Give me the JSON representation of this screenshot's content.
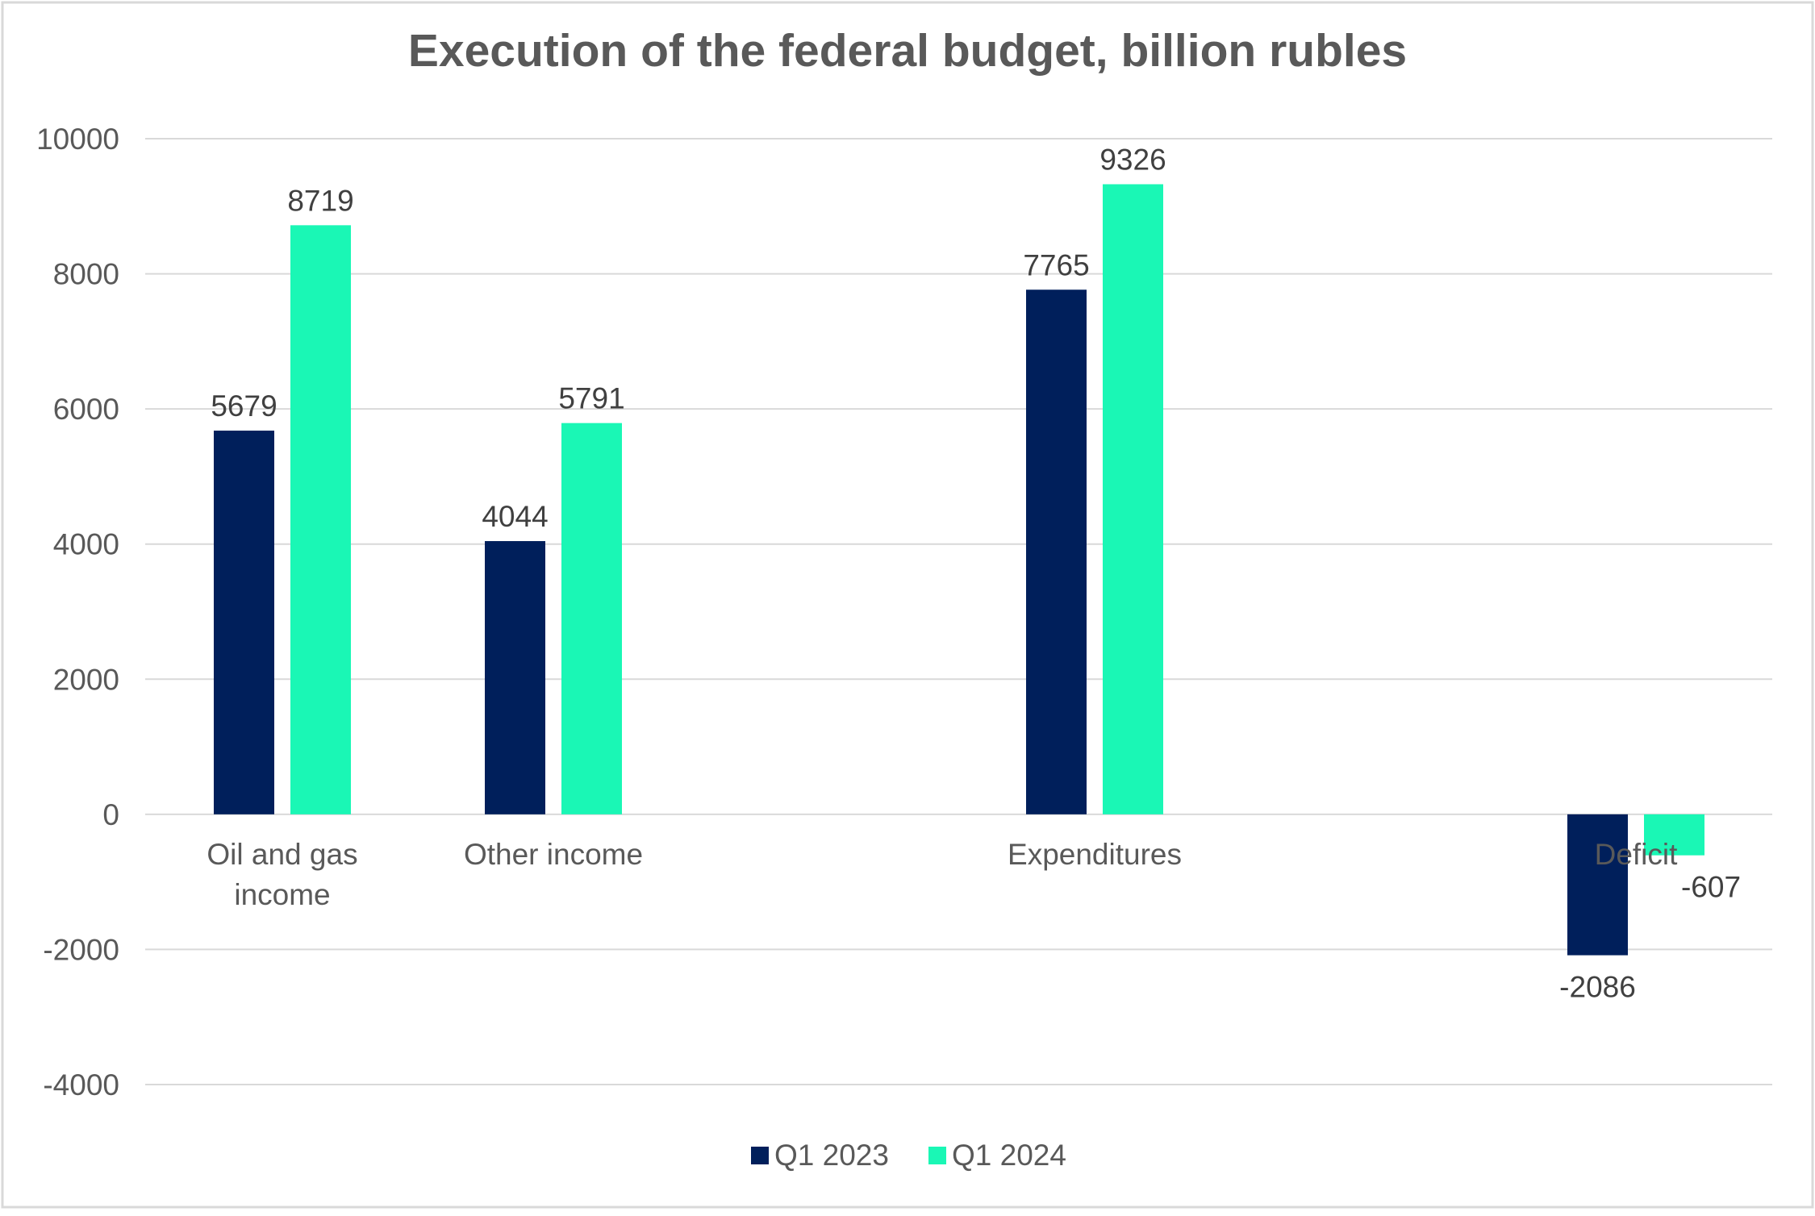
{
  "chart_data": {
    "type": "bar",
    "title": "Execution of the federal budget, billion rubles",
    "categories": [
      [
        "Oil and gas",
        "income"
      ],
      [
        "Other income"
      ],
      [
        "Expenditures"
      ],
      [
        "Deficit"
      ]
    ],
    "series": [
      {
        "name": "Q1 2023",
        "color": "#001F5B",
        "values": [
          5679,
          4044,
          7765,
          -2086
        ]
      },
      {
        "name": "Q1 2024",
        "color": "#1AF7B5",
        "values": [
          8719,
          5791,
          9326,
          -607
        ]
      }
    ],
    "ylim": [
      -4000,
      10000
    ],
    "yticks": [
      "10000",
      "8000",
      "6000",
      "4000",
      "2000",
      "0",
      "-2000",
      "-4000"
    ],
    "grid": true,
    "legend_position": "bottom",
    "colors": {
      "title": "#595959",
      "axis_text": "#595959",
      "data_label": "#404040",
      "gridline": "#D9D9D9",
      "border": "#D9D9D9"
    }
  }
}
